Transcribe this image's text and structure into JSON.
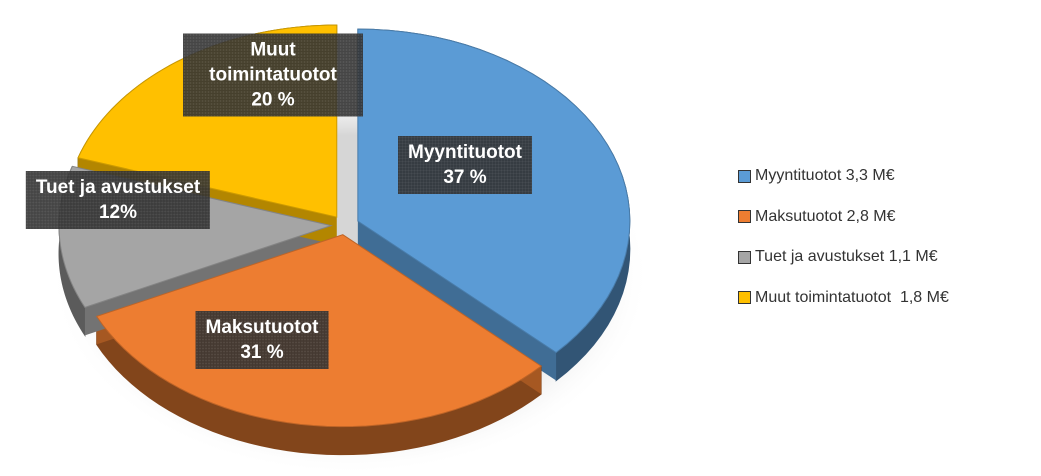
{
  "chart_data": {
    "type": "pie",
    "categories": [
      "Myyntituotot",
      "Maksutuotot",
      "Tuet ja avustukset",
      "Muut toimintatuotot"
    ],
    "values": [
      37,
      31,
      12,
      20
    ],
    "value_labels": [
      "37 %",
      "31 %",
      "12%",
      "20 %"
    ],
    "colors": [
      "#5b9bd5",
      "#ed7d31",
      "#a5a5a5",
      "#ffc000"
    ],
    "legend_labels": [
      "Myyntituotot 3,3 M€",
      "Maksutuotot 2,8 M€",
      "Tuet ja avustukset 1,1 M€",
      "Muut toimintatuotot  1,8 M€"
    ],
    "legend": "right"
  }
}
